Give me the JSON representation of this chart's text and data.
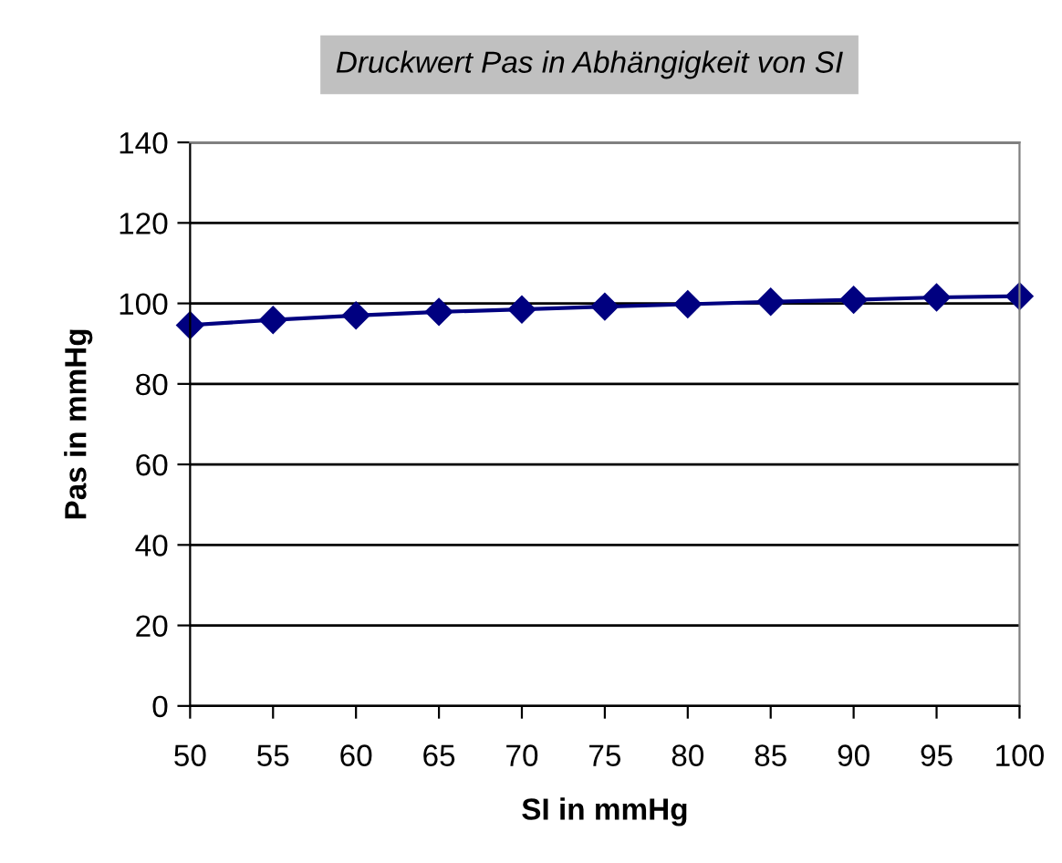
{
  "chart_data": {
    "type": "line",
    "title": "Druckwert Pas in Abhängigkeit von SI",
    "xlabel": "SI in mmHg",
    "ylabel": "Pas in mmHg",
    "x": [
      50,
      55,
      60,
      65,
      70,
      75,
      80,
      85,
      90,
      95,
      100
    ],
    "series": [
      {
        "color": "#000080",
        "values": [
          94.6,
          95.9,
          97.0,
          97.9,
          98.5,
          99.2,
          99.8,
          100.4,
          100.9,
          101.5,
          101.8
        ]
      }
    ],
    "xlim": [
      50,
      100
    ],
    "xticks": [
      50,
      55,
      60,
      65,
      70,
      75,
      80,
      85,
      90,
      95,
      100
    ],
    "ylim": [
      0,
      140
    ],
    "yticks": [
      0,
      20,
      40,
      60,
      80,
      100,
      120,
      140
    ],
    "grid": "y",
    "marker": "diamond",
    "line_style": "solid"
  }
}
